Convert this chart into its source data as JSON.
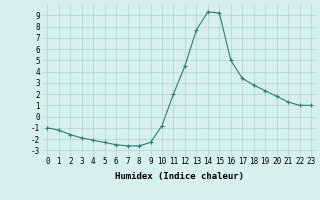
{
  "x": [
    0,
    1,
    2,
    3,
    4,
    5,
    6,
    7,
    8,
    9,
    10,
    11,
    12,
    13,
    14,
    15,
    16,
    17,
    18,
    19,
    20,
    21,
    22,
    23
  ],
  "y": [
    -1.0,
    -1.2,
    -1.6,
    -1.9,
    -2.1,
    -2.3,
    -2.5,
    -2.6,
    -2.6,
    -2.3,
    -0.8,
    2.0,
    4.5,
    7.7,
    9.3,
    9.2,
    5.0,
    3.4,
    2.8,
    2.3,
    1.8,
    1.3,
    1.0,
    1.0
  ],
  "line_color": "#2e7d6e",
  "marker": "+",
  "marker_size": 3,
  "bg_color": "#d6f0ee",
  "grid_color": "#aed4cf",
  "xlabel": "Humidex (Indice chaleur)",
  "xlim": [
    -0.5,
    23.5
  ],
  "ylim": [
    -3.5,
    10.0
  ],
  "yticks": [
    -3,
    -2,
    -1,
    0,
    1,
    2,
    3,
    4,
    5,
    6,
    7,
    8,
    9
  ],
  "xticks": [
    0,
    1,
    2,
    3,
    4,
    5,
    6,
    7,
    8,
    9,
    10,
    11,
    12,
    13,
    14,
    15,
    16,
    17,
    18,
    19,
    20,
    21,
    22,
    23
  ],
  "label_fontsize": 6.5,
  "tick_fontsize": 5.5
}
